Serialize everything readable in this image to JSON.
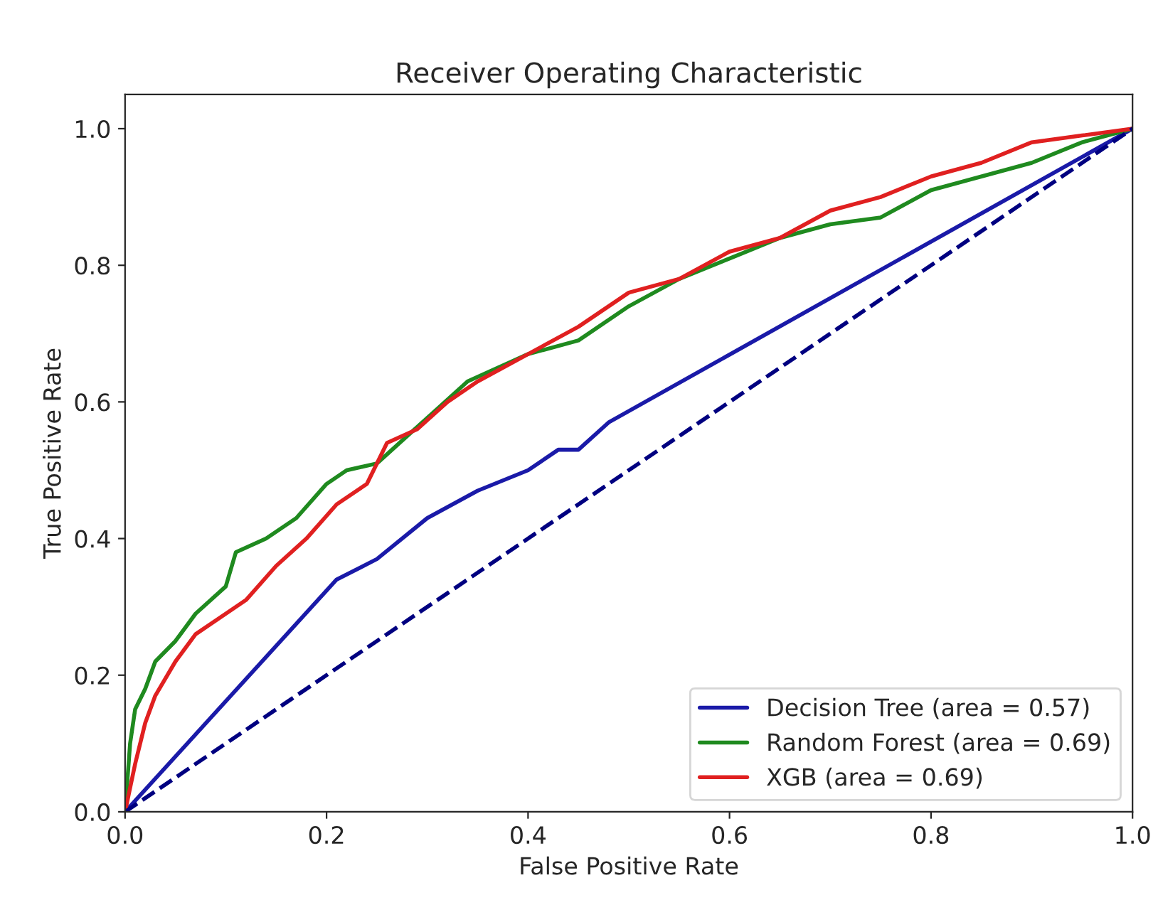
{
  "chart_data": {
    "type": "line",
    "title": "Receiver Operating Characteristic",
    "xlabel": "False Positive Rate",
    "ylabel": "True Positive Rate",
    "xlim": [
      0,
      1
    ],
    "ylim": [
      0,
      1.05
    ],
    "xticks": [
      {
        "value": 0,
        "label": "0.0"
      },
      0.2,
      0.4,
      0.6,
      0.8,
      {
        "value": 1,
        "label": "1.0"
      }
    ],
    "yticks": [
      {
        "value": 0,
        "label": "0.0"
      },
      0.2,
      0.4,
      0.6,
      0.8,
      {
        "value": 1,
        "label": "1.0"
      }
    ],
    "grid": false,
    "legend": "bottom right",
    "series": [
      {
        "name": "Decision Tree (area = 0.57)",
        "color": "#1a1aa8",
        "line_style": "solid",
        "x": [
          0,
          0.21,
          0.25,
          0.3,
          0.35,
          0.4,
          0.43,
          0.45,
          0.48,
          1
        ],
        "values": [
          0,
          0.34,
          0.37,
          0.43,
          0.47,
          0.5,
          0.53,
          0.53,
          0.57,
          1
        ]
      },
      {
        "name": "Random Forest (area = 0.69)",
        "color": "#1f8a1f",
        "line_style": "solid",
        "x": [
          0,
          0.005,
          0.01,
          0.02,
          0.03,
          0.05,
          0.07,
          0.1,
          0.11,
          0.14,
          0.17,
          0.2,
          0.22,
          0.25,
          0.28,
          0.31,
          0.34,
          0.37,
          0.4,
          0.45,
          0.5,
          0.55,
          0.6,
          0.65,
          0.7,
          0.75,
          0.8,
          0.85,
          0.9,
          0.95,
          1
        ],
        "values": [
          0,
          0.1,
          0.15,
          0.18,
          0.22,
          0.25,
          0.29,
          0.33,
          0.38,
          0.4,
          0.43,
          0.48,
          0.5,
          0.51,
          0.55,
          0.59,
          0.63,
          0.65,
          0.67,
          0.69,
          0.74,
          0.78,
          0.81,
          0.84,
          0.86,
          0.87,
          0.91,
          0.93,
          0.95,
          0.98,
          1
        ]
      },
      {
        "name": "XGB (area = 0.69)",
        "color": "#e02020",
        "line_style": "solid",
        "x": [
          0,
          0.01,
          0.02,
          0.03,
          0.05,
          0.07,
          0.1,
          0.12,
          0.15,
          0.18,
          0.21,
          0.24,
          0.26,
          0.29,
          0.32,
          0.35,
          0.4,
          0.45,
          0.5,
          0.55,
          0.6,
          0.65,
          0.7,
          0.75,
          0.8,
          0.85,
          0.9,
          0.95,
          1
        ],
        "values": [
          0,
          0.07,
          0.13,
          0.17,
          0.22,
          0.26,
          0.29,
          0.31,
          0.36,
          0.4,
          0.45,
          0.48,
          0.54,
          0.56,
          0.6,
          0.63,
          0.67,
          0.71,
          0.76,
          0.78,
          0.82,
          0.84,
          0.88,
          0.9,
          0.93,
          0.95,
          0.98,
          0.99,
          1
        ]
      },
      {
        "color": "#000080",
        "line_style": "dashed",
        "x": [
          0,
          1
        ],
        "values": [
          0,
          1
        ]
      }
    ]
  }
}
